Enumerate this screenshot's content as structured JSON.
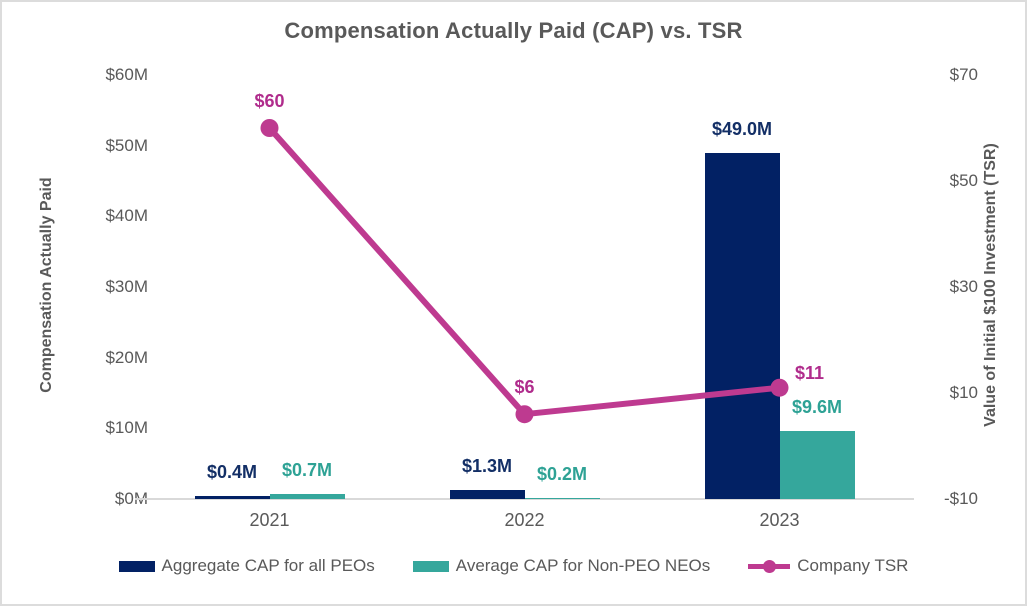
{
  "chart_data": {
    "type": "combo-bar-line",
    "title": "Compensation Actually Paid (CAP) vs. TSR",
    "categories": [
      "2021",
      "2022",
      "2023"
    ],
    "series": [
      {
        "name": "Aggregate CAP for all PEOs",
        "type": "bar",
        "axis": "left",
        "color": "#022164",
        "label_color": "#132f66",
        "values": [
          0.4,
          1.3,
          49.0
        ],
        "labels": [
          "$0.4M",
          "$1.3M",
          "$49.0M"
        ]
      },
      {
        "name": "Average CAP for Non-PEO NEOs",
        "type": "bar",
        "axis": "left",
        "color": "#35a79c",
        "label_color": "#2ea295",
        "values": [
          0.7,
          0.2,
          9.6
        ],
        "labels": [
          "$0.7M",
          "$0.2M",
          "$9.6M"
        ]
      },
      {
        "name": "Company TSR",
        "type": "line",
        "axis": "right",
        "color": "#be3a90",
        "label_color": "#b02c8c",
        "values": [
          60,
          6,
          11
        ],
        "labels": [
          "$60",
          "$6",
          "$11"
        ]
      }
    ],
    "left_axis": {
      "title": "Compensation Actually Paid",
      "ticks": [
        "$60M",
        "$50M",
        "$40M",
        "$30M",
        "$20M",
        "$10M",
        "$0M"
      ],
      "tick_values": [
        60,
        50,
        40,
        30,
        20,
        10,
        0
      ],
      "range": [
        0,
        60
      ]
    },
    "right_axis": {
      "title": "Value of Initial $100 Investment (TSR)",
      "ticks": [
        "$70",
        "$50",
        "$30",
        "$10",
        "-$10"
      ],
      "tick_values": [
        70,
        50,
        30,
        10,
        -10
      ],
      "range": [
        -10,
        70
      ]
    },
    "legend_position": "bottom",
    "grid": false,
    "colors": {
      "axis_text": "#595959",
      "axis_line": "#d9d9d9",
      "title_text": "#595959"
    }
  }
}
